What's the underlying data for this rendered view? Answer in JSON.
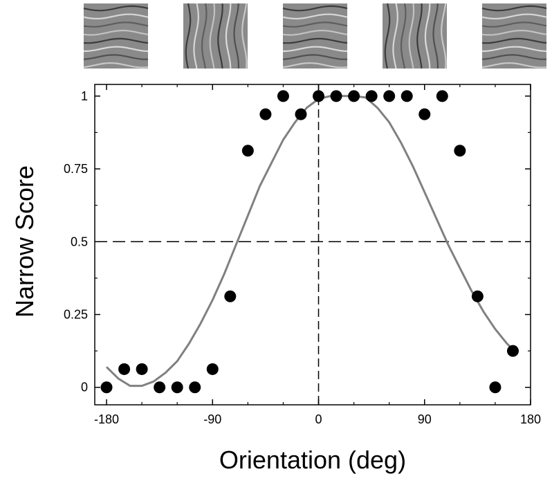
{
  "chart_data": {
    "type": "scatter",
    "title": "",
    "xlabel": "Orientation (deg)",
    "ylabel": "Narrow Score",
    "xlim": [
      -190,
      180
    ],
    "ylim": [
      -0.06,
      1.04
    ],
    "xticks": [
      -180,
      -90,
      0,
      90,
      180
    ],
    "xtick_labels": [
      "-180",
      "-90",
      "0",
      "90",
      "180"
    ],
    "yticks": [
      0,
      0.25,
      0.5,
      0.75,
      1
    ],
    "ytick_labels": [
      "0",
      "0.25",
      "0.5",
      "0.75",
      "1"
    ],
    "reference_lines": {
      "horizontal_y": 0.5,
      "vertical_x": 0,
      "style": "dashed"
    },
    "grid": false,
    "legend": "none",
    "series": [
      {
        "type": "scatter",
        "color": "#000000",
        "points": [
          {
            "x": -180,
            "y": 0
          },
          {
            "x": -165,
            "y": 0.0625
          },
          {
            "x": -150,
            "y": 0.0625
          },
          {
            "x": -135,
            "y": 0
          },
          {
            "x": -120,
            "y": 0
          },
          {
            "x": -105,
            "y": 0
          },
          {
            "x": -90,
            "y": 0.0625
          },
          {
            "x": -75,
            "y": 0.3125
          },
          {
            "x": -60,
            "y": 0.8125
          },
          {
            "x": -45,
            "y": 0.9375
          },
          {
            "x": -30,
            "y": 1
          },
          {
            "x": -15,
            "y": 0.9375
          },
          {
            "x": 0,
            "y": 1
          },
          {
            "x": 15,
            "y": 1
          },
          {
            "x": 30,
            "y": 1
          },
          {
            "x": 45,
            "y": 1
          },
          {
            "x": 60,
            "y": 1
          },
          {
            "x": 75,
            "y": 1
          },
          {
            "x": 90,
            "y": 0.9375
          },
          {
            "x": 105,
            "y": 1
          },
          {
            "x": 120,
            "y": 0.8125
          },
          {
            "x": 135,
            "y": 0.3125
          },
          {
            "x": 150,
            "y": 0
          },
          {
            "x": 165,
            "y": 0.125
          }
        ]
      },
      {
        "type": "line",
        "color": "#808080",
        "x": [
          -180,
          -170,
          -160,
          -150,
          -140,
          -130,
          -120,
          -110,
          -100,
          -90,
          -80,
          -70,
          -60,
          -50,
          -40,
          -30,
          -20,
          -10,
          0,
          10,
          20,
          30,
          40,
          50,
          60,
          70,
          80,
          90,
          100,
          110,
          120,
          130,
          140,
          150,
          160,
          165
        ],
        "y": [
          0.07,
          0.03,
          0.005,
          0.005,
          0.02,
          0.05,
          0.09,
          0.15,
          0.22,
          0.3,
          0.39,
          0.49,
          0.59,
          0.69,
          0.77,
          0.85,
          0.91,
          0.96,
          0.99,
          1.0,
          1.0,
          1.0,
          0.995,
          0.96,
          0.91,
          0.84,
          0.76,
          0.67,
          0.58,
          0.49,
          0.41,
          0.33,
          0.26,
          0.2,
          0.15,
          0.13
        ]
      }
    ],
    "stimulus_images": [
      {
        "orientation": "horizontal"
      },
      {
        "orientation": "vertical"
      },
      {
        "orientation": "horizontal"
      },
      {
        "orientation": "vertical"
      },
      {
        "orientation": "horizontal"
      }
    ]
  }
}
